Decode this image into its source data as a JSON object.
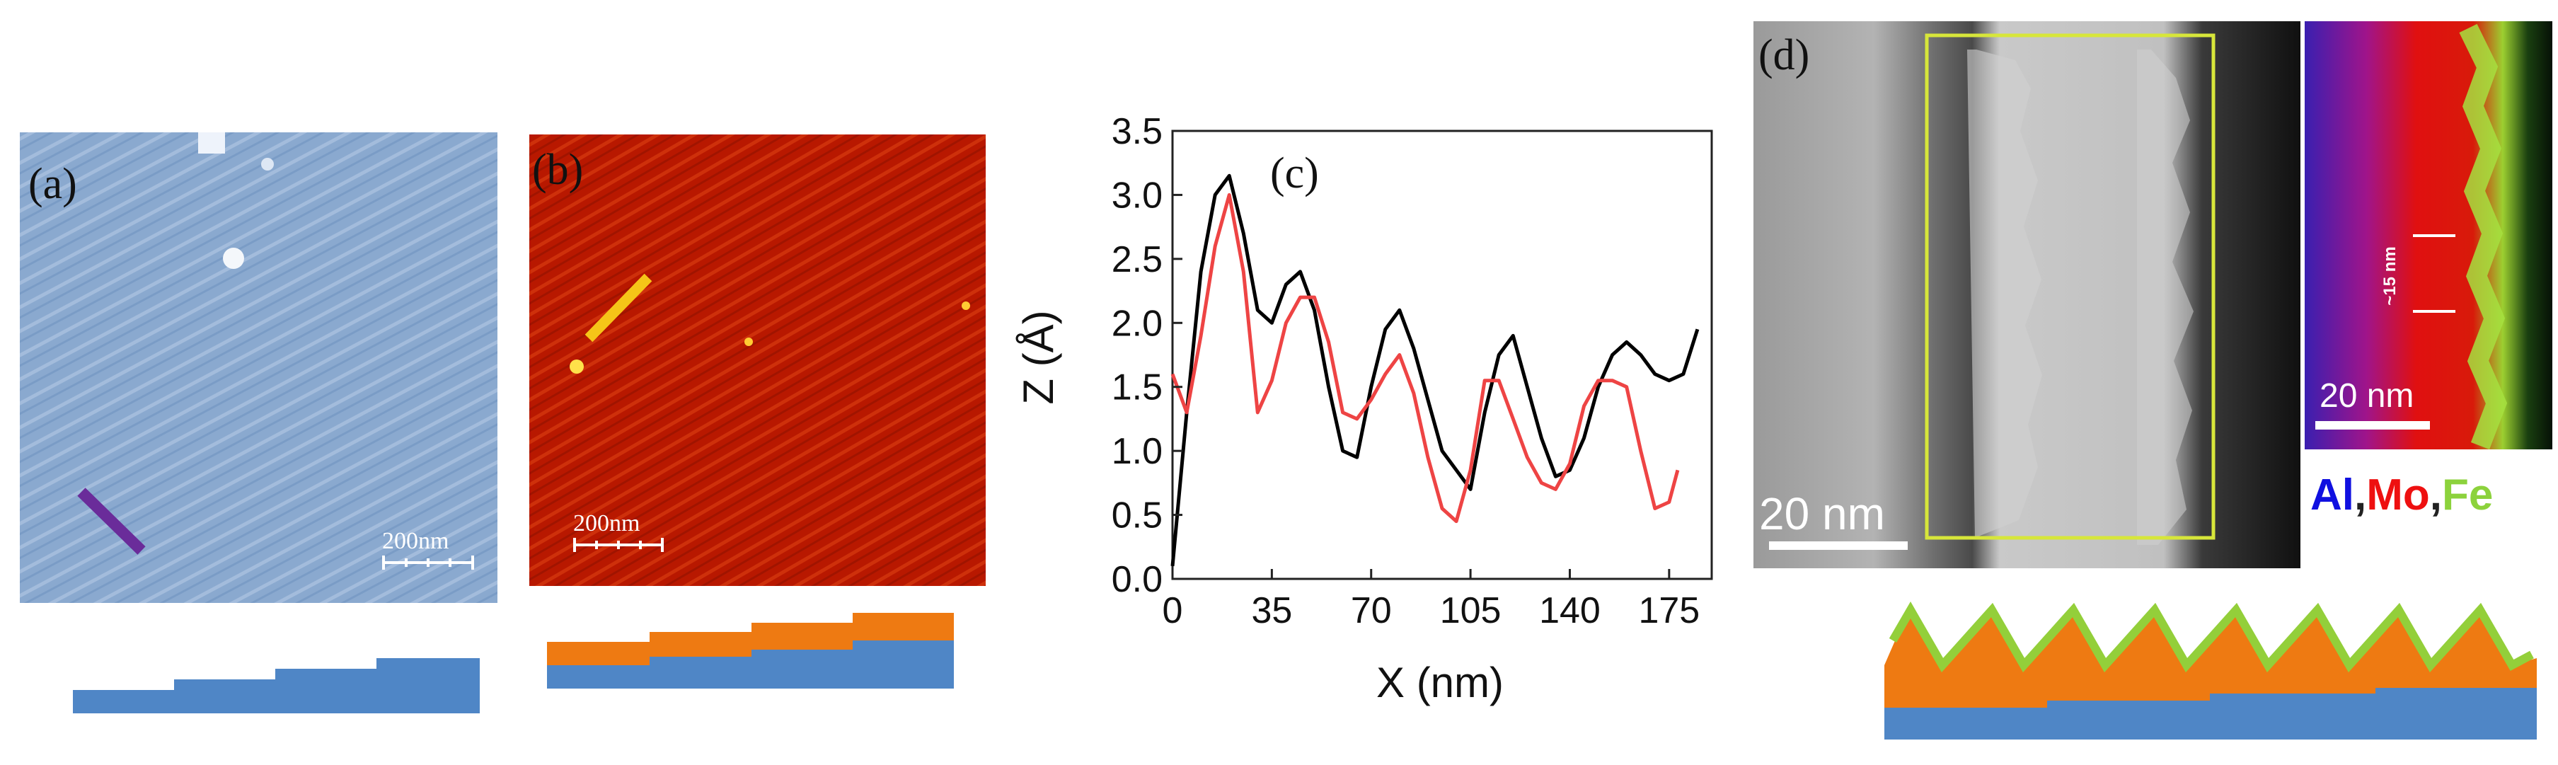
{
  "figure": {
    "panel_a": {
      "label": "(a)",
      "scalebar_label": "200nm"
    },
    "panel_b": {
      "label": "(b)",
      "scalebar_label": "200nm"
    },
    "panel_c": {
      "label": "(c)"
    },
    "panel_d": {
      "label": "(d)",
      "tem_scalebar_label": "20 nm",
      "map_scalebar_label": "20 nm",
      "period_annotation": "~15 nm"
    },
    "eds_legend": [
      {
        "symbol": "Al",
        "color": "#1010e0"
      },
      {
        "symbol": "Mo",
        "color": "#ee1010"
      },
      {
        "symbol": "Fe",
        "color": "#8cd23c"
      }
    ],
    "colors": {
      "afm_blue": "#8aa9cf",
      "afm_red": "#b81800",
      "line_purple": "#6a2c9a",
      "line_yellow": "#f5c518",
      "step_blue": "#4f86c6",
      "step_orange": "#ee7a12",
      "ripple_green": "#93cf3a",
      "roi_box": "#d7e63a",
      "curve_black": "#000000",
      "curve_red": "#ee4444"
    }
  },
  "chart_data": {
    "type": "line",
    "title": "(c)",
    "xlabel": "X (nm)",
    "ylabel": "Z (Å)",
    "xlim": [
      0,
      190
    ],
    "ylim": [
      0,
      3.5
    ],
    "xticks": [
      0,
      35,
      70,
      105,
      140,
      175
    ],
    "yticks": [
      0.0,
      0.5,
      1.0,
      1.5,
      2.0,
      2.5,
      3.0,
      3.5
    ],
    "xtick_labels": [
      "0",
      "35",
      "70",
      "105",
      "140",
      "175"
    ],
    "ytick_labels": [
      "0.0",
      "0.5",
      "1.0",
      "1.5",
      "2.0",
      "2.5",
      "3.0",
      "3.5"
    ],
    "series": [
      {
        "name": "black profile",
        "color": "#000000",
        "x": [
          0,
          5,
          10,
          15,
          20,
          25,
          30,
          35,
          40,
          45,
          50,
          55,
          60,
          65,
          70,
          75,
          80,
          85,
          90,
          95,
          100,
          105,
          110,
          115,
          120,
          125,
          130,
          135,
          140,
          145,
          150,
          155,
          160,
          165,
          170,
          175,
          180,
          185
        ],
        "y": [
          0.1,
          1.3,
          2.4,
          3.0,
          3.15,
          2.7,
          2.1,
          2.0,
          2.3,
          2.4,
          2.1,
          1.5,
          1.0,
          0.95,
          1.5,
          1.95,
          2.1,
          1.8,
          1.4,
          1.0,
          0.85,
          0.7,
          1.3,
          1.75,
          1.9,
          1.5,
          1.1,
          0.8,
          0.85,
          1.1,
          1.5,
          1.75,
          1.85,
          1.75,
          1.6,
          1.55,
          1.6,
          1.95
        ]
      },
      {
        "name": "red profile",
        "color": "#ee4444",
        "x": [
          0,
          5,
          10,
          15,
          20,
          25,
          30,
          35,
          40,
          45,
          50,
          55,
          60,
          65,
          70,
          75,
          80,
          85,
          90,
          95,
          100,
          105,
          110,
          115,
          120,
          125,
          130,
          135,
          140,
          145,
          150,
          155,
          160,
          165,
          170,
          175,
          178
        ],
        "y": [
          1.6,
          1.3,
          1.9,
          2.6,
          3.0,
          2.4,
          1.3,
          1.55,
          2.0,
          2.2,
          2.2,
          1.85,
          1.3,
          1.25,
          1.4,
          1.6,
          1.75,
          1.45,
          0.95,
          0.55,
          0.45,
          0.85,
          1.55,
          1.55,
          1.25,
          0.95,
          0.75,
          0.7,
          0.9,
          1.35,
          1.55,
          1.55,
          1.5,
          1.0,
          0.55,
          0.6,
          0.85
        ]
      }
    ]
  }
}
